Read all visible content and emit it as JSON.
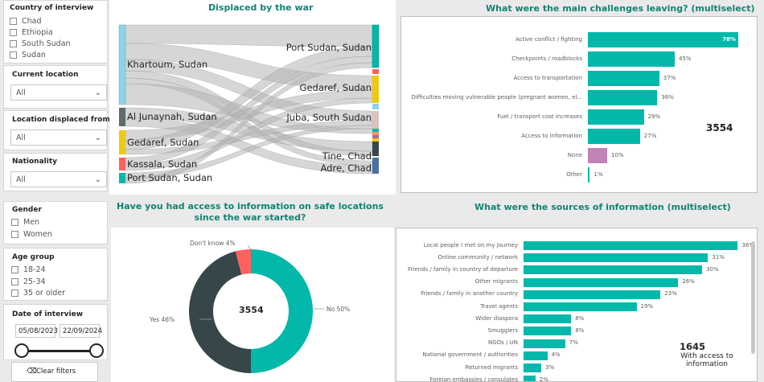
{
  "filters": {
    "country": {
      "title": "Country of interview",
      "options": [
        "Chad",
        "Ethiopia",
        "South Sudan",
        "Sudan"
      ]
    },
    "current_location": {
      "title": "Current location",
      "value": "All"
    },
    "displaced_from": {
      "title": "Location displaced from",
      "value": "All"
    },
    "nationality": {
      "title": "Nationality",
      "value": "All"
    },
    "gender": {
      "title": "Gender",
      "options": [
        "Men",
        "Women"
      ]
    },
    "age_group": {
      "title": "Age group",
      "options": [
        "18-24",
        "25-34",
        "35 or older"
      ]
    },
    "date": {
      "title": "Date of interview",
      "start": "05/08/2023",
      "end": "22/09/2024",
      "range": [
        0,
        1
      ]
    },
    "clear_label": "Clear filters"
  },
  "sankey": {
    "title": "Displaced by the war",
    "sources": [
      "Khartoum, Sudan",
      "Al Junaynah, Sudan",
      "Gedaref, Sudan",
      "Kassala, Sudan",
      "Port Sudan, Sudan"
    ],
    "targets": [
      "Port Sudan, Sudan",
      "Gedaref, Sudan",
      "Juba, South Sudan",
      "Tine, Chad",
      "Adre, Chad"
    ],
    "colors": {
      "khartoum": "#8ad4eb",
      "junaynah": "#5f6b6d",
      "gedaref": "#f2c80f",
      "kassala": "#fd625e",
      "portsudan": "#01b8aa",
      "flow": "#b5b5b5"
    }
  },
  "kpis": {
    "challenges_total": "3554",
    "info_access_total": "3554",
    "sources_total": "1645",
    "sources_caption": "With access to information"
  },
  "chart_data": [
    {
      "type": "bar",
      "title": "What were the main challenges leaving? (multiselect)",
      "categories": [
        "Active conflict / fighting",
        "Checkpoints / roadblocks",
        "Access to transportation",
        "Difficulties moving vulnerable people (pregnant women, el...",
        "Fuel / transport cost increases",
        "Access to information",
        "None",
        "Other"
      ],
      "values": [
        78,
        45,
        37,
        36,
        29,
        27,
        10,
        1
      ],
      "value_labels": [
        "78%",
        "45%",
        "37%",
        "36%",
        "29%",
        "27%",
        "10%",
        "1%"
      ],
      "colors": [
        "#01b8aa",
        "#01b8aa",
        "#01b8aa",
        "#01b8aa",
        "#01b8aa",
        "#01b8aa",
        "#c083b5",
        "#01b8aa"
      ]
    },
    {
      "type": "pie",
      "title": "Have you had access to information on safe locations since the war started?",
      "categories": [
        "No",
        "Yes",
        "Don't know"
      ],
      "values": [
        50,
        46,
        4
      ],
      "value_labels": [
        "No 50%",
        "Yes 46%",
        "Don't know 4%"
      ],
      "colors": [
        "#01b8aa",
        "#374649",
        "#fd625e"
      ]
    },
    {
      "type": "bar",
      "title": "What were the sources of information (multiselect)",
      "categories": [
        "Local people I met on my journey",
        "Online community / network",
        "Friends / family in country of departure",
        "Other migrants",
        "Friends / family in another country",
        "Travel agents",
        "Wider diaspora",
        "Smugglers",
        "NGOs / UN",
        "National government / authorities",
        "Returned migrants",
        "Foreign embassies / consulates"
      ],
      "values": [
        36,
        31,
        30,
        26,
        23,
        19,
        8,
        8,
        7,
        4,
        3,
        2
      ],
      "value_labels": [
        "36%",
        "31%",
        "30%",
        "26%",
        "23%",
        "19%",
        "8%",
        "8%",
        "7%",
        "4%",
        "3%",
        "2%"
      ],
      "colors": [
        "#01b8aa"
      ]
    }
  ]
}
